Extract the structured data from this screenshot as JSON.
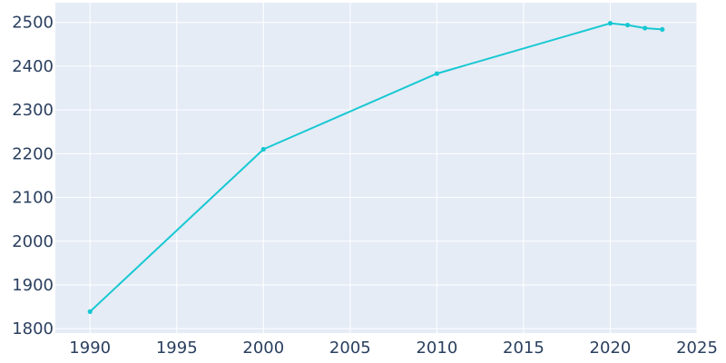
{
  "chart_data": {
    "type": "line",
    "title": "",
    "xlabel": "",
    "ylabel": "",
    "xlim": [
      1988,
      2025
    ],
    "ylim": [
      1790,
      2545
    ],
    "x_ticks": [
      1990,
      1995,
      2000,
      2005,
      2010,
      2015,
      2020,
      2025
    ],
    "y_ticks": [
      1800,
      1900,
      2000,
      2100,
      2200,
      2300,
      2400,
      2500
    ],
    "x_tick_labels": [
      "1990",
      "1995",
      "2000",
      "2005",
      "2010",
      "2015",
      "2020",
      "2025"
    ],
    "y_tick_labels": [
      "1800",
      "1900",
      "2000",
      "2100",
      "2200",
      "2300",
      "2400",
      "2500"
    ],
    "grid": true,
    "colors": {
      "plot_background": "#e5ecf6",
      "grid": "#ffffff",
      "line": "#17c8d2",
      "tick_text": "#2a3f5f"
    },
    "series": [
      {
        "x": [
          1990,
          2000,
          2010,
          2020,
          2021,
          2022,
          2023
        ],
        "y": [
          1839,
          2210,
          2383,
          2498,
          2494,
          2487,
          2484
        ]
      }
    ]
  }
}
